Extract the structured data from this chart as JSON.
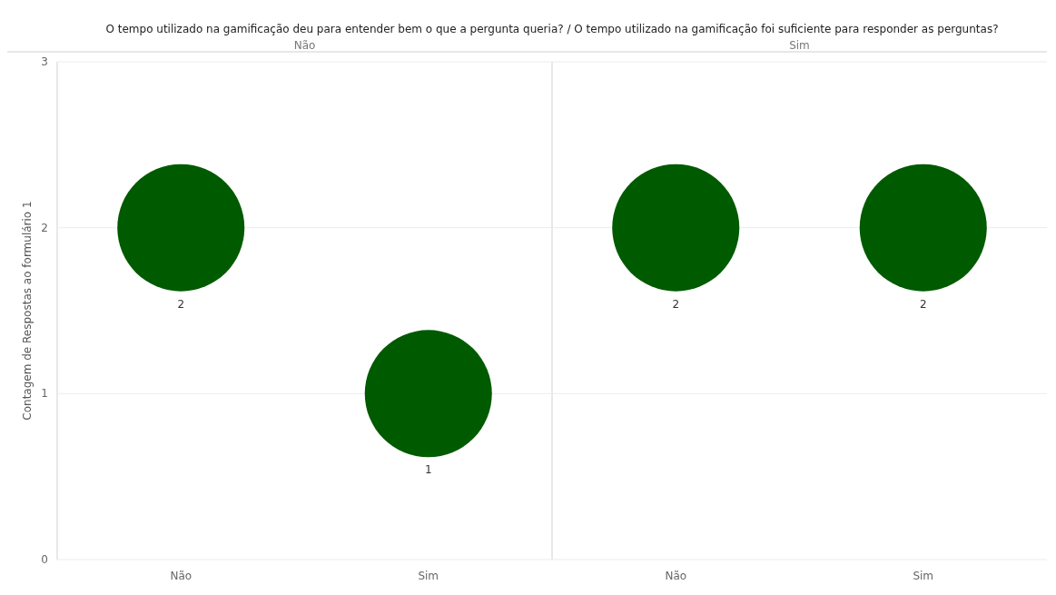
{
  "chart_data": [
    {
      "type": "scatter",
      "title": "O tempo utilizado na gamificação deu para entender bem o que a pergunta queria?  /  O tempo utilizado na gamificação foi suficiente para responder as perguntas?",
      "subtitle": "Não",
      "ylabel": "Contagem de Respostas ao formulário 1",
      "categories": [
        "Não",
        "Sim"
      ],
      "series": [
        {
          "color": "#005a00",
          "values": [
            2,
            1
          ]
        }
      ],
      "ylim": [
        0,
        3
      ],
      "yticks": [
        0,
        1,
        2,
        3
      ],
      "grid": "y",
      "marker": "circle",
      "data_labels": true
    },
    {
      "type": "scatter",
      "subtitle": "Sim",
      "categories": [
        "Não",
        "Sim"
      ],
      "series": [
        {
          "color": "#005a00",
          "values": [
            2,
            2
          ]
        }
      ],
      "ylim": [
        0,
        3
      ],
      "yticks": [
        0,
        1,
        2,
        3
      ],
      "grid": "y",
      "marker": "circle",
      "data_labels": true,
      "tick_labels": "x"
    }
  ]
}
